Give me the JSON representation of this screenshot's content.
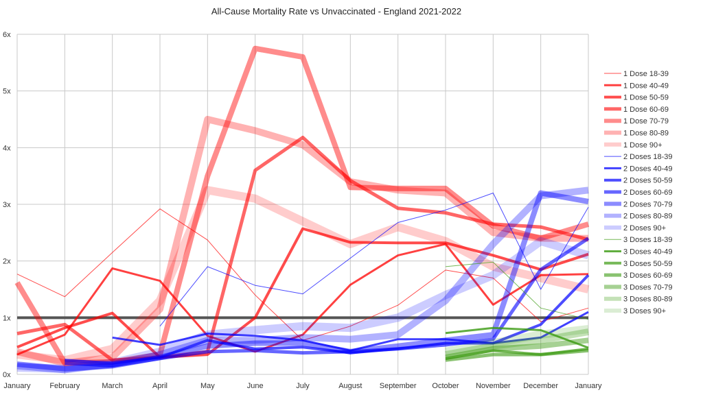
{
  "chart_data": {
    "type": "line",
    "title": "All-Cause Mortality Rate vs Unvaccinated - England 2021-2022",
    "xlabel": "",
    "ylabel": "",
    "categories": [
      "January",
      "February",
      "March",
      "April",
      "May",
      "June",
      "July",
      "August",
      "September",
      "October",
      "November",
      "December",
      "January"
    ],
    "yticks": [
      "0x",
      "1x",
      "2x",
      "3x",
      "4x",
      "5x",
      "6x"
    ],
    "ylim": [
      0,
      6
    ],
    "grid": true,
    "legend_position": "right",
    "reference_line": {
      "value": 1,
      "color": "#555555"
    },
    "series": [
      {
        "name": "1 Dose 18-39",
        "color": "#ff0000",
        "opacity": 0.7,
        "values": [
          1.77,
          1.37,
          2.15,
          2.92,
          2.37,
          1.4,
          0.6,
          0.85,
          1.22,
          1.84,
          1.7,
          0.93,
          1.17
        ]
      },
      {
        "name": "1 Dose 40-49",
        "color": "#ff0000",
        "opacity": 0.75,
        "values": [
          0.35,
          0.7,
          1.87,
          1.65,
          0.68,
          0.4,
          0.7,
          1.58,
          2.1,
          2.3,
          1.23,
          1.75,
          1.77
        ]
      },
      {
        "name": "1 Dose 50-59",
        "color": "#ff0000",
        "opacity": 0.7,
        "values": [
          0.48,
          0.82,
          1.08,
          0.3,
          0.35,
          1.0,
          2.57,
          2.33,
          2.32,
          2.32,
          2.1,
          1.85,
          2.12
        ]
      },
      {
        "name": "1 Dose 60-69",
        "color": "#ff0000",
        "opacity": 0.6,
        "values": [
          0.72,
          0.88,
          0.25,
          0.3,
          0.4,
          3.6,
          4.18,
          3.42,
          2.93,
          2.85,
          2.65,
          2.6,
          2.38
        ]
      },
      {
        "name": "1 Dose 70-79",
        "color": "#ff0000",
        "opacity": 0.45,
        "values": [
          1.62,
          0.2,
          0.22,
          0.35,
          3.5,
          5.75,
          5.6,
          3.3,
          3.28,
          3.28,
          2.62,
          2.4,
          2.65
        ]
      },
      {
        "name": "1 Dose 80-89",
        "color": "#ff0000",
        "opacity": 0.3,
        "values": [
          0.4,
          0.2,
          0.3,
          1.15,
          4.5,
          4.3,
          4.05,
          3.4,
          3.25,
          3.2,
          2.5,
          2.4,
          2.4
        ]
      },
      {
        "name": "1 Dose 90+",
        "color": "#ff0000",
        "opacity": 0.2,
        "values": [
          0.35,
          0.25,
          0.45,
          1.3,
          3.25,
          3.1,
          2.7,
          2.3,
          2.6,
          2.35,
          1.9,
          1.7,
          1.5
        ]
      },
      {
        "name": "2 Doses 18-39",
        "color": "#0000ff",
        "opacity": 0.7,
        "values": [
          null,
          null,
          null,
          0.85,
          1.9,
          1.57,
          1.42,
          2.05,
          2.68,
          2.9,
          3.2,
          1.5,
          2.95
        ]
      },
      {
        "name": "2 Doses 40-49",
        "color": "#0000ff",
        "opacity": 0.75,
        "values": [
          null,
          null,
          0.65,
          0.52,
          0.72,
          0.68,
          0.6,
          0.42,
          0.62,
          0.62,
          0.55,
          0.65,
          1.1
        ]
      },
      {
        "name": "2 Doses 50-59",
        "color": "#0000ff",
        "opacity": 0.7,
        "values": [
          null,
          0.25,
          0.2,
          0.3,
          0.6,
          0.45,
          0.48,
          0.38,
          0.45,
          0.55,
          0.55,
          0.88,
          1.75
        ]
      },
      {
        "name": "2 Doses 60-69",
        "color": "#0000ff",
        "opacity": 0.6,
        "values": [
          null,
          0.2,
          0.15,
          0.28,
          0.4,
          0.42,
          0.38,
          0.4,
          0.45,
          0.52,
          0.62,
          1.85,
          2.4
        ]
      },
      {
        "name": "2 Doses 70-79",
        "color": "#0000ff",
        "opacity": 0.45,
        "values": [
          0.18,
          0.1,
          0.15,
          0.3,
          0.5,
          0.55,
          0.55,
          0.4,
          0.5,
          0.6,
          0.7,
          3.2,
          3.05
        ]
      },
      {
        "name": "2 Doses 80-89",
        "color": "#0000ff",
        "opacity": 0.3,
        "values": [
          0.15,
          0.08,
          0.18,
          0.35,
          0.6,
          0.6,
          0.65,
          0.62,
          0.7,
          1.3,
          2.3,
          3.15,
          3.25
        ]
      },
      {
        "name": "2 Doses 90+",
        "color": "#0000ff",
        "opacity": 0.2,
        "values": [
          0.12,
          0.1,
          0.2,
          0.4,
          0.7,
          0.78,
          0.85,
          0.82,
          1.0,
          1.4,
          1.75,
          2.35,
          2.1
        ]
      },
      {
        "name": "3 Doses 18-39",
        "color": "#3a9a10",
        "opacity": 0.7,
        "values": [
          null,
          null,
          null,
          null,
          null,
          null,
          null,
          null,
          null,
          1.9,
          1.98,
          1.17,
          0.97
        ]
      },
      {
        "name": "3 Doses 40-49",
        "color": "#3a9a10",
        "opacity": 0.8,
        "values": [
          null,
          null,
          null,
          null,
          null,
          null,
          null,
          null,
          null,
          0.73,
          0.82,
          0.78,
          0.47
        ]
      },
      {
        "name": "3 Doses 50-59",
        "color": "#3a9a10",
        "opacity": 0.7,
        "values": [
          null,
          null,
          null,
          null,
          null,
          null,
          null,
          null,
          null,
          0.28,
          0.42,
          0.35,
          0.45
        ]
      },
      {
        "name": "3 Doses 60-69",
        "color": "#3a9a10",
        "opacity": 0.6,
        "values": [
          null,
          null,
          null,
          null,
          null,
          null,
          null,
          null,
          null,
          0.25,
          0.35,
          0.35,
          0.42
        ]
      },
      {
        "name": "3 Doses 70-79",
        "color": "#3a9a10",
        "opacity": 0.45,
        "values": [
          null,
          null,
          null,
          null,
          null,
          null,
          null,
          null,
          null,
          0.3,
          0.45,
          0.5,
          0.6
        ]
      },
      {
        "name": "3 Doses 80-89",
        "color": "#3a9a10",
        "opacity": 0.3,
        "values": [
          null,
          null,
          null,
          null,
          null,
          null,
          null,
          null,
          null,
          0.35,
          0.5,
          0.6,
          0.75
        ]
      },
      {
        "name": "3 Doses 90+",
        "color": "#3a9a10",
        "opacity": 0.18,
        "values": [
          null,
          null,
          null,
          null,
          null,
          null,
          null,
          null,
          null,
          0.4,
          0.55,
          0.7,
          0.8
        ]
      }
    ]
  }
}
